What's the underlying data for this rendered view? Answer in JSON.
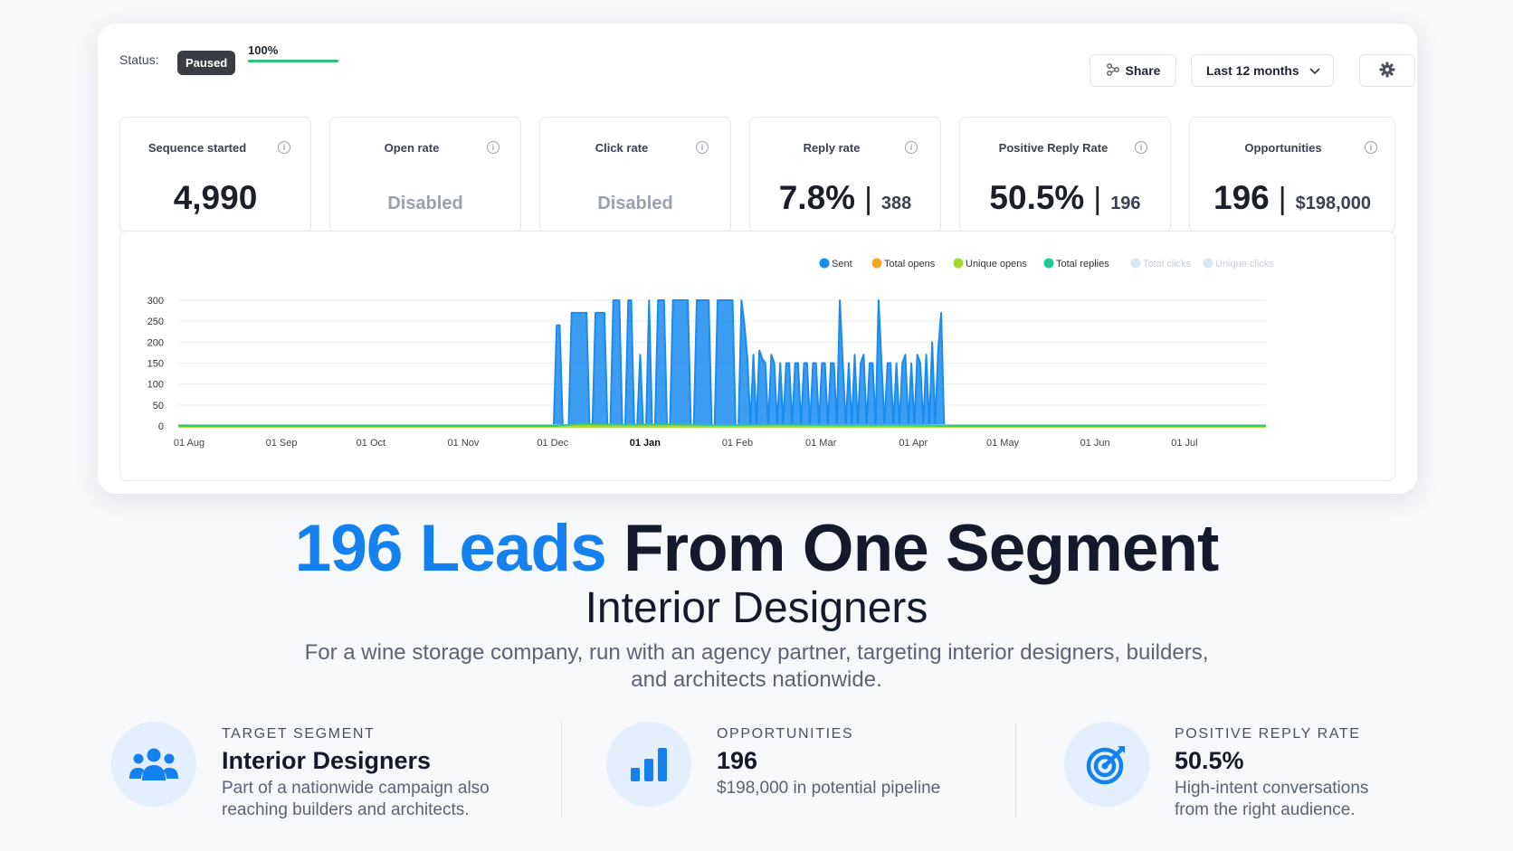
{
  "header": {
    "status_label": "Status:",
    "status_badge": "Paused",
    "progress_text": "100%",
    "progress_value": 1.0,
    "share_label": "Share",
    "range_label": "Last 12 months",
    "settings_icon": "gear-icon",
    "share_icon": "share-icon"
  },
  "stats": [
    {
      "title": "Sequence started",
      "value": "4,990",
      "sub": ""
    },
    {
      "title": "Open rate",
      "value": "Disabled",
      "sub": ""
    },
    {
      "title": "Click rate",
      "value": "Disabled",
      "sub": ""
    },
    {
      "title": "Reply rate",
      "value": "7.8%",
      "sub": "388"
    },
    {
      "title": "Positive Reply Rate",
      "value": "50.5%",
      "sub": "196"
    },
    {
      "title": "Opportunities",
      "value": "196",
      "sub": "$198,000"
    }
  ],
  "chart_data": {
    "type": "area",
    "legend": [
      {
        "name": "Sent",
        "color": "#1a8cf0",
        "active": true
      },
      {
        "name": "Total opens",
        "color": "#f5a623",
        "active": true
      },
      {
        "name": "Unique opens",
        "color": "#a6d92b",
        "active": true
      },
      {
        "name": "Total replies",
        "color": "#22c994",
        "active": true
      },
      {
        "name": "Total clicks",
        "color": "#dce6f2",
        "active": false
      },
      {
        "name": "Unique clicks",
        "color": "#dce6f2",
        "active": false
      }
    ],
    "legend_position": "top-right",
    "grid": true,
    "ylim": [
      0,
      300
    ],
    "yticks": [
      "300",
      "250",
      "200",
      "150",
      "100",
      "50",
      "0"
    ],
    "yticks_values": [
      300,
      250,
      200,
      150,
      100,
      50,
      0
    ],
    "xticks": [
      "01 Aug",
      "01 Sep",
      "01 Oct",
      "01 Nov",
      "01 Dec",
      "01 Jan",
      "01 Feb",
      "01 Mar",
      "01 Apr",
      "01 May",
      "01 Jun",
      "01 Jul"
    ],
    "xticks_day": [
      0,
      31,
      61,
      92,
      122,
      153,
      184,
      212,
      243,
      273,
      304,
      334
    ],
    "x_range_days": [
      0,
      365
    ],
    "series": [
      {
        "name": "Sent",
        "color": "#1a8cf0",
        "points": [
          [
            126,
            0
          ],
          [
            127,
            240
          ],
          [
            128,
            240
          ],
          [
            129,
            0
          ],
          [
            131,
            0
          ],
          [
            132,
            270
          ],
          [
            137,
            270
          ],
          [
            138,
            0
          ],
          [
            139,
            0
          ],
          [
            140,
            270
          ],
          [
            143,
            270
          ],
          [
            144,
            0
          ],
          [
            145,
            0
          ],
          [
            146,
            300
          ],
          [
            148,
            300
          ],
          [
            149,
            0
          ],
          [
            150,
            0
          ],
          [
            151,
            300
          ],
          [
            152,
            300
          ],
          [
            153,
            0
          ],
          [
            154,
            0
          ],
          [
            155,
            170
          ],
          [
            156,
            0
          ],
          [
            157,
            0
          ],
          [
            158,
            300
          ],
          [
            159,
            0
          ],
          [
            160,
            0
          ],
          [
            161,
            300
          ],
          [
            163,
            300
          ],
          [
            164,
            0
          ],
          [
            165,
            0
          ],
          [
            166,
            300
          ],
          [
            171,
            300
          ],
          [
            172,
            0
          ],
          [
            173,
            0
          ],
          [
            174,
            300
          ],
          [
            178,
            300
          ],
          [
            179,
            0
          ],
          [
            180,
            0
          ],
          [
            181,
            300
          ],
          [
            186,
            300
          ],
          [
            187,
            0
          ],
          [
            188,
            0
          ],
          [
            189,
            300
          ],
          [
            190,
            240
          ],
          [
            191,
            160
          ],
          [
            192,
            0
          ],
          [
            193,
            170
          ],
          [
            194,
            0
          ],
          [
            195,
            180
          ],
          [
            196,
            160
          ],
          [
            197,
            150
          ],
          [
            198,
            0
          ],
          [
            199,
            170
          ],
          [
            200,
            150
          ],
          [
            201,
            0
          ],
          [
            202,
            150
          ],
          [
            203,
            0
          ],
          [
            204,
            150
          ],
          [
            205,
            150
          ],
          [
            206,
            0
          ],
          [
            207,
            150
          ],
          [
            208,
            150
          ],
          [
            209,
            0
          ],
          [
            210,
            150
          ],
          [
            211,
            150
          ],
          [
            212,
            0
          ],
          [
            213,
            150
          ],
          [
            214,
            150
          ],
          [
            215,
            0
          ],
          [
            216,
            150
          ],
          [
            217,
            150
          ],
          [
            218,
            0
          ],
          [
            219,
            150
          ],
          [
            220,
            150
          ],
          [
            221,
            0
          ],
          [
            222,
            300
          ],
          [
            223,
            150
          ],
          [
            224,
            0
          ],
          [
            225,
            150
          ],
          [
            226,
            0
          ],
          [
            227,
            170
          ],
          [
            228,
            0
          ],
          [
            229,
            150
          ],
          [
            230,
            170
          ],
          [
            231,
            0
          ],
          [
            232,
            150
          ],
          [
            233,
            150
          ],
          [
            234,
            0
          ],
          [
            235,
            300
          ],
          [
            236,
            150
          ],
          [
            237,
            0
          ],
          [
            238,
            150
          ],
          [
            239,
            150
          ],
          [
            240,
            0
          ],
          [
            241,
            150
          ],
          [
            242,
            0
          ],
          [
            243,
            150
          ],
          [
            244,
            170
          ],
          [
            245,
            0
          ],
          [
            246,
            150
          ],
          [
            247,
            0
          ],
          [
            248,
            170
          ],
          [
            249,
            150
          ],
          [
            250,
            0
          ],
          [
            251,
            170
          ],
          [
            252,
            0
          ],
          [
            253,
            200
          ],
          [
            254,
            0
          ],
          [
            255,
            180
          ],
          [
            256,
            270
          ],
          [
            257,
            0
          ],
          [
            258,
            0
          ]
        ]
      },
      {
        "name": "Total opens",
        "color": "#f5a623",
        "points": [
          [
            0,
            0
          ],
          [
            365,
            0
          ]
        ]
      },
      {
        "name": "Unique opens",
        "color": "#a6d92b",
        "points": [
          [
            0,
            0
          ],
          [
            365,
            0
          ]
        ]
      },
      {
        "name": "Total replies",
        "color": "#22c994",
        "points": [
          [
            0,
            0
          ],
          [
            126,
            0
          ],
          [
            135,
            5
          ],
          [
            150,
            3
          ],
          [
            165,
            4
          ],
          [
            180,
            2
          ],
          [
            200,
            3
          ],
          [
            220,
            2
          ],
          [
            245,
            2
          ],
          [
            258,
            0
          ],
          [
            365,
            0
          ]
        ]
      }
    ]
  },
  "hero": {
    "headline_accent": "196 Leads",
    "headline_rest": "From One Segment",
    "subheadline": "Interior Designers",
    "description": "For a wine storage company, run with an agency partner, targeting interior designers, builders, and architects nationwide."
  },
  "features": [
    {
      "kicker": "TARGET SEGMENT",
      "title": "Interior Designers",
      "text": "Part of a nationwide campaign also reaching builders and architects.",
      "icon": "users-icon"
    },
    {
      "kicker": "OPPORTUNITIES",
      "title": "196",
      "text": "$198,000 in potential pipeline",
      "icon": "bar-chart-icon"
    },
    {
      "kicker": "POSITIVE REPLY RATE",
      "title": "50.5%",
      "text": "High-intent conversations from the right audience.",
      "icon": "target-icon"
    }
  ],
  "colors": {
    "accent": "#1581ee",
    "progress": "#2ec27e",
    "badge": "#3a3d44"
  }
}
